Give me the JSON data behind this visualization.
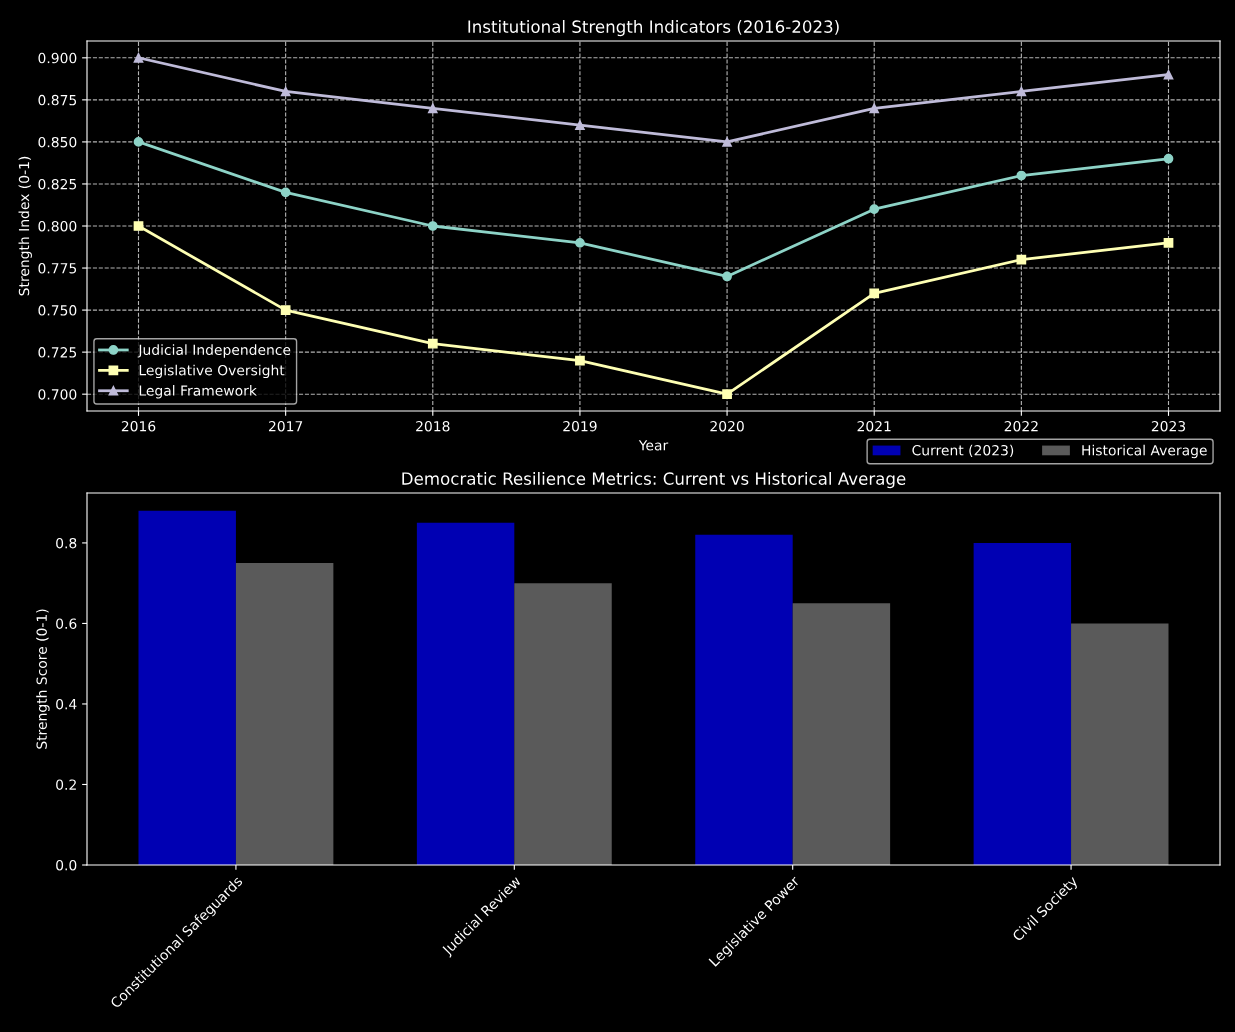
{
  "chart_data": [
    {
      "type": "line",
      "title": "Institutional Strength Indicators (2016-2023)",
      "xlabel": "Year",
      "ylabel": "Strength Index (0-1)",
      "x": [
        2016,
        2017,
        2018,
        2019,
        2020,
        2021,
        2022,
        2023
      ],
      "series": [
        {
          "name": "Judicial Independence",
          "color": "#8dd3c7",
          "marker": "circle",
          "values": [
            0.85,
            0.82,
            0.8,
            0.79,
            0.77,
            0.81,
            0.83,
            0.84
          ]
        },
        {
          "name": "Legislative Oversight",
          "color": "#feffb3",
          "marker": "square",
          "values": [
            0.8,
            0.75,
            0.73,
            0.72,
            0.7,
            0.76,
            0.78,
            0.79
          ]
        },
        {
          "name": "Legal Framework",
          "color": "#bfbbd9",
          "marker": "triangle",
          "values": [
            0.9,
            0.88,
            0.87,
            0.86,
            0.85,
            0.87,
            0.88,
            0.89
          ]
        }
      ],
      "xlim": [
        2015.65,
        2023.35
      ],
      "xticks": [
        2016,
        2017,
        2018,
        2019,
        2020,
        2021,
        2022,
        2023
      ],
      "ylim": [
        0.69,
        0.91
      ],
      "yticks": [
        {
          "value": 0.7,
          "label": "0.700"
        },
        {
          "value": 0.725,
          "label": "0.725"
        },
        {
          "value": 0.75,
          "label": "0.750"
        },
        {
          "value": 0.775,
          "label": "0.775"
        },
        {
          "value": 0.8,
          "label": "0.800"
        },
        {
          "value": 0.825,
          "label": "0.825"
        },
        {
          "value": 0.85,
          "label": "0.850"
        },
        {
          "value": 0.875,
          "label": "0.875"
        },
        {
          "value": 0.9,
          "label": "0.900"
        }
      ],
      "grid": true,
      "line_style": "solid",
      "legend": "bottom left"
    },
    {
      "type": "bar",
      "title": "Democratic Resilience Metrics: Current vs Historical Average",
      "ylabel": "Strength Score (0-1)",
      "categories": [
        "Constitutional Safeguards",
        "Judicial Review",
        "Legislative Power",
        "Civil Society"
      ],
      "series": [
        {
          "name": "Current (2023)",
          "color": "#0000b3",
          "values": [
            0.88,
            0.85,
            0.82,
            0.8
          ]
        },
        {
          "name": "Historical Average",
          "color": "#5a5a5a",
          "values": [
            0.75,
            0.7,
            0.65,
            0.6
          ]
        }
      ],
      "ylim": [
        0,
        0.924
      ],
      "yticks": [
        {
          "value": 0,
          "label": "0.0"
        },
        {
          "value": 0.2,
          "label": "0.2"
        },
        {
          "value": 0.4,
          "label": "0.4"
        },
        {
          "value": 0.6,
          "label": "0.6"
        },
        {
          "value": 0.8,
          "label": "0.8"
        }
      ],
      "grid": false,
      "legend": "top right"
    }
  ]
}
